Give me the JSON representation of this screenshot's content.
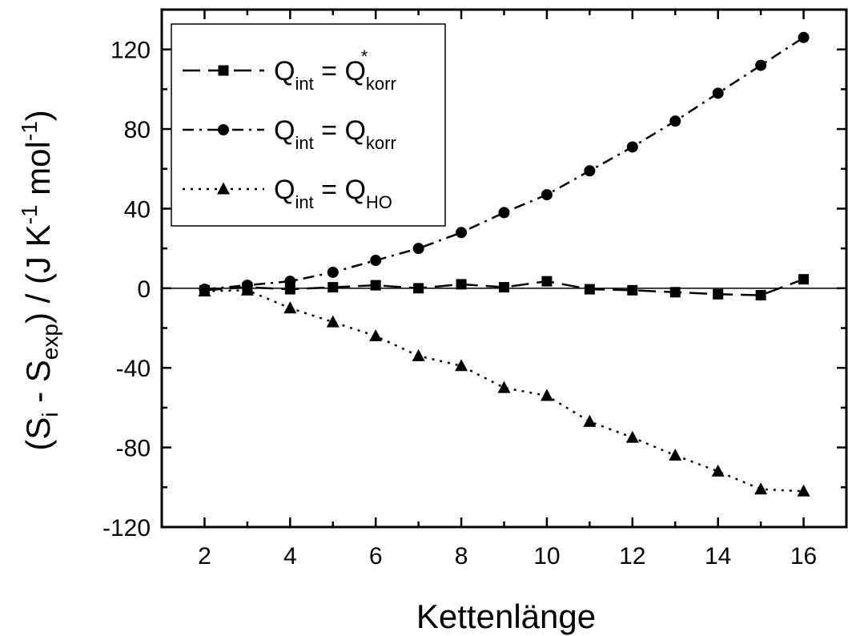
{
  "chart_data": {
    "type": "line",
    "title": "",
    "xlabel": "Kettenlänge",
    "ylabel": {
      "main": "(S",
      "sub_i": "i",
      "minus": " - S",
      "sub_exp": "exp",
      "rest": ") / (J K",
      "sup1": "-1",
      "mol": " mol",
      "sup2": "-1",
      "close": ")"
    },
    "xlim": [
      1,
      17
    ],
    "ylim": [
      -120,
      140
    ],
    "xticks": [
      2,
      4,
      6,
      8,
      10,
      12,
      14,
      16
    ],
    "yticks": [
      -120,
      -80,
      -40,
      0,
      40,
      80,
      120
    ],
    "grid": false,
    "zero_line": true,
    "legend_position": "top-left",
    "series": [
      {
        "name": "Q_int = Q*_korr",
        "legend": {
          "q1": "Q",
          "s1": "int",
          "eq": " = Q",
          "s2": "korr",
          "sup": "*"
        },
        "marker": "square",
        "line": "long-dash",
        "x": [
          2,
          3,
          4,
          5,
          6,
          7,
          8,
          9,
          10,
          11,
          12,
          13,
          14,
          15,
          16
        ],
        "y": [
          -1,
          0.5,
          -0.5,
          0.5,
          1.5,
          0,
          2,
          0.5,
          3.5,
          -0.5,
          -1,
          -2,
          -3,
          -3.5,
          4.5
        ]
      },
      {
        "name": "Q_int = Q_korr",
        "legend": {
          "q1": "Q",
          "s1": "int",
          "eq": " = Q",
          "s2": "korr",
          "sup": ""
        },
        "marker": "circle",
        "line": "dash-dot",
        "x": [
          2,
          3,
          4,
          5,
          6,
          7,
          8,
          9,
          10,
          11,
          12,
          13,
          14,
          15,
          16
        ],
        "y": [
          -0.5,
          1.5,
          3.5,
          8,
          14,
          20,
          28,
          38,
          47,
          59,
          71,
          84,
          98,
          112,
          126
        ]
      },
      {
        "name": "Q_int = Q_HO",
        "legend": {
          "q1": "Q",
          "s1": "int",
          "eq": " = Q",
          "s2": "HO",
          "sup": ""
        },
        "marker": "triangle",
        "line": "dotted",
        "x": [
          2,
          3,
          4,
          5,
          6,
          7,
          8,
          9,
          10,
          11,
          12,
          13,
          14,
          15,
          16
        ],
        "y": [
          -1.5,
          -1,
          -10,
          -17,
          -24,
          -34,
          -39,
          -50,
          -54,
          -67,
          -75,
          -84,
          -92,
          -101,
          -102
        ]
      }
    ]
  }
}
